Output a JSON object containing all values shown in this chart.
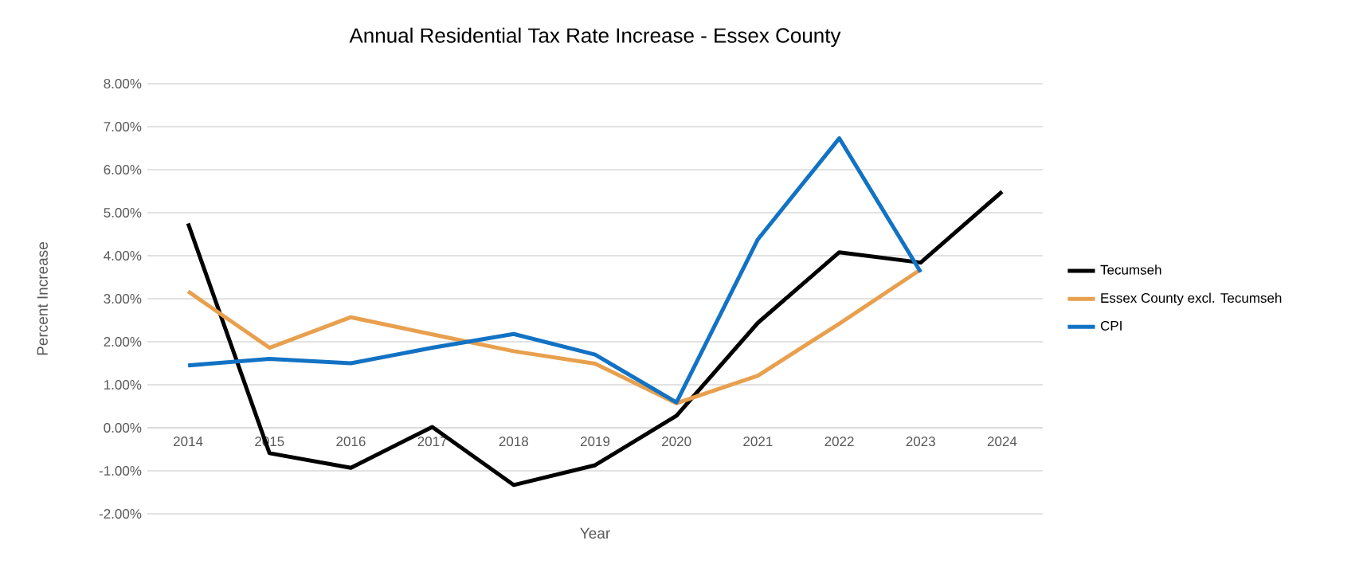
{
  "chart_data": {
    "type": "line",
    "title": "Annual Residential Tax Rate Increase - Essex County",
    "xlabel": "Year",
    "ylabel": "Percent Increase",
    "categories": [
      "2014",
      "2015",
      "2016",
      "2017",
      "2018",
      "2019",
      "2020",
      "2021",
      "2022",
      "2023",
      "2024"
    ],
    "series": [
      {
        "name": "Tecumseh",
        "color": "#000000",
        "values": [
          4.75,
          -0.59,
          -0.93,
          0.02,
          -1.33,
          -0.87,
          0.28,
          2.44,
          4.08,
          3.84,
          5.49
        ]
      },
      {
        "name": "Essex County excl. Tecumseh",
        "color": "#e8a04e",
        "values": [
          3.17,
          1.86,
          2.57,
          2.17,
          1.78,
          1.49,
          0.57,
          1.21,
          2.42,
          3.68,
          null
        ]
      },
      {
        "name": "CPI",
        "color": "#1272c4",
        "values": [
          1.45,
          1.6,
          1.5,
          1.86,
          2.18,
          1.7,
          0.59,
          4.38,
          6.73,
          3.62,
          null
        ]
      }
    ],
    "ylim": [
      -2,
      8
    ],
    "yticks": [
      {
        "value": -2,
        "label": "-2.00%"
      },
      {
        "value": -1,
        "label": "-1.00%"
      },
      {
        "value": 0,
        "label": "0.00%"
      },
      {
        "value": 1,
        "label": "1.00%"
      },
      {
        "value": 2,
        "label": "2.00%"
      },
      {
        "value": 3,
        "label": "3.00%"
      },
      {
        "value": 4,
        "label": "4.00%"
      },
      {
        "value": 5,
        "label": "5.00%"
      },
      {
        "value": 6,
        "label": "6.00%"
      },
      {
        "value": 7,
        "label": "7.00%"
      },
      {
        "value": 8,
        "label": "8.00%"
      }
    ],
    "grid": "y",
    "legend": "right",
    "marker": "none",
    "line_style": "solid"
  }
}
